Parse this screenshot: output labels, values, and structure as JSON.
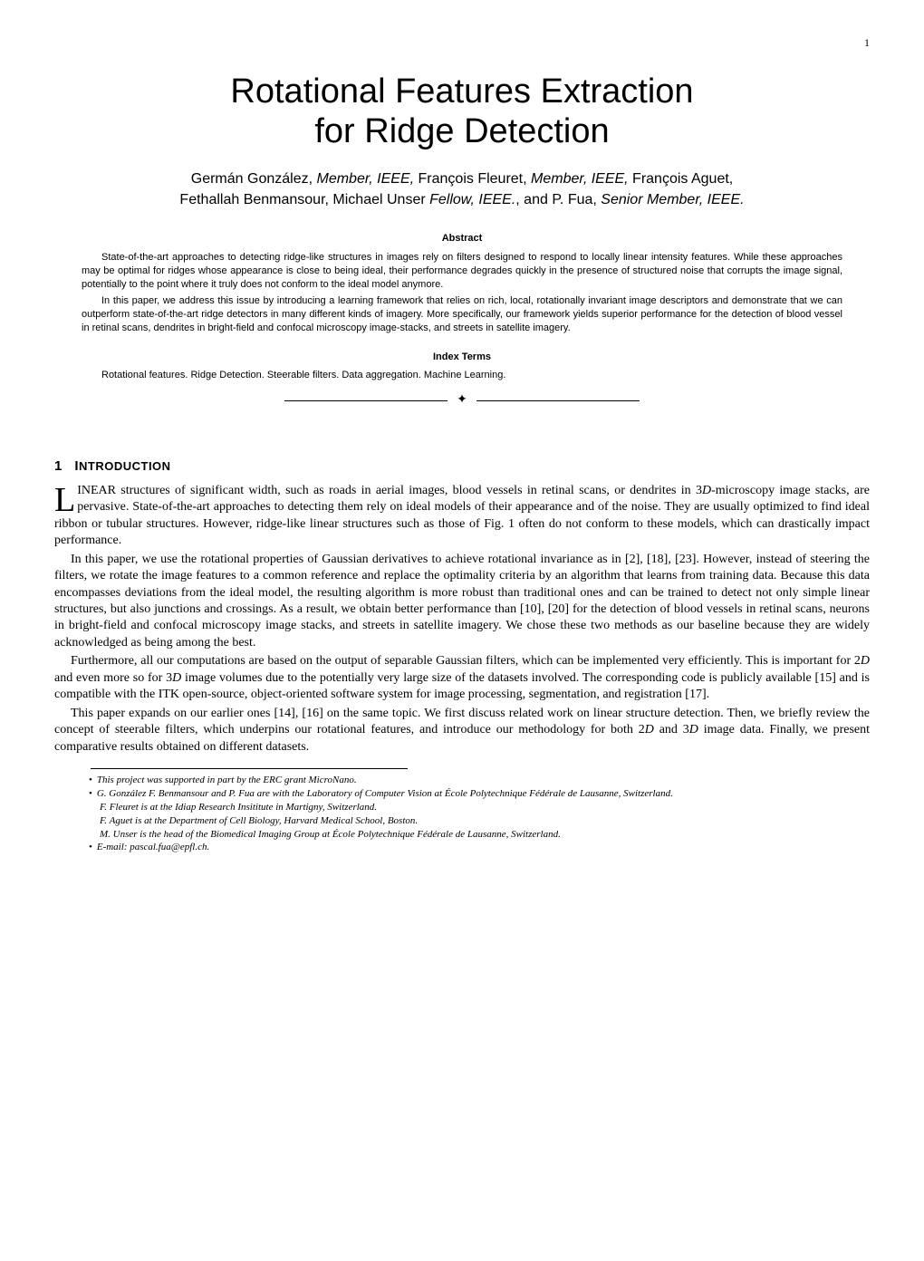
{
  "page_number": "1",
  "title_line1": "Rotational Features Extraction",
  "title_line2": "for Ridge Detection",
  "authors_line1_pre": "Germán González, ",
  "authors_line1_role1": "Member, IEEE,",
  "authors_line1_mid": " François Fleuret, ",
  "authors_line1_role2": "Member, IEEE,",
  "authors_line1_end": " François Aguet,",
  "authors_line2_pre": "Fethallah Benmansour, Michael Unser ",
  "authors_line2_role1": "Fellow, IEEE.",
  "authors_line2_mid": ", and P. Fua, ",
  "authors_line2_role2": "Senior Member, IEEE.",
  "abstract_label": "Abstract",
  "abstract_p1": "State-of-the-art approaches to detecting ridge-like structures in images rely on filters designed to respond to locally linear intensity features. While these approaches may be optimal for ridges whose appearance is close to being ideal, their performance degrades quickly in the presence of structured noise that corrupts the image signal, potentially to the point where it truly does not conform to the ideal model anymore.",
  "abstract_p2": "In this paper, we address this issue by introducing a learning framework that relies on rich, local, rotationally invariant image descriptors and demonstrate that we can outperform state-of-the-art ridge detectors in many different kinds of imagery. More specifically, our framework yields superior performance for the detection of blood vessel in retinal scans, dendrites in bright-field and confocal microscopy image-stacks, and streets in satellite imagery.",
  "index_terms_label": "Index Terms",
  "index_terms_text": "Rotational features. Ridge Detection. Steerable filters. Data aggregation. Machine Learning.",
  "section1_num": "1",
  "section1_initial": "I",
  "section1_rest": "NTRODUCTION",
  "body_dropcap": "L",
  "body_p1": "INEAR structures of significant width, such as roads in aerial images, blood vessels in retinal scans, or dendrites in 3D-microscopy image stacks, are pervasive. State-of-the-art approaches to detecting them rely on ideal models of their appearance and of the noise. They are usually optimized to find ideal ribbon or tubular structures. However, ridge-like linear structures such as those of Fig. 1 often do not conform to these models, which can drastically impact performance.",
  "body_p2": "In this paper, we use the rotational properties of Gaussian derivatives to achieve rotational invariance as in [2], [18], [23]. However, instead of steering the filters, we rotate the image features to a common reference and replace the optimality criteria by an algorithm that learns from training data. Because this data encompasses deviations from the ideal model, the resulting algorithm is more robust than traditional ones and can be trained to detect not only simple linear structures, but also junctions and crossings. As a result, we obtain better performance than [10], [20] for the detection of blood vessels in retinal scans, neurons in bright-field and confocal microscopy image stacks, and streets in satellite imagery. We chose these two methods as our baseline because they are widely acknowledged as being among the best.",
  "body_p3": "Furthermore, all our computations are based on the output of separable Gaussian filters, which can be implemented very efficiently. This is important for 2D and even more so for 3D image volumes due to the potentially very large size of the datasets involved. The corresponding code is publicly available [15] and is compatible with the ITK open-source, object-oriented software system for image processing, segmentation, and registration [17].",
  "body_p4": "This paper expands on our earlier ones [14], [16] on the same topic. We first discuss related work on linear structure detection. Then, we briefly review the concept of steerable filters, which underpins our rotational features, and introduce our methodology for both 2D and 3D image data. Finally, we present comparative results obtained on different datasets.",
  "footnote1": "This project was supported in part by the ERC grant MicroNano.",
  "footnote2a": "G. González F. Benmansour and P. Fua are with the Laboratory of Computer Vision at École Polytechnique Fédérale de Lausanne, Switzerland.",
  "footnote2b": "F. Fleuret is at the Idiap Research Insititute in Martigny, Switzerland.",
  "footnote2c": "F. Aguet is at the Department of Cell Biology, Harvard Medical School, Boston.",
  "footnote2d": "M. Unser is the head of the Biomedical Imaging Group at École Polytechnique Fédérale de Lausanne, Switzerland.",
  "footnote3": "E-mail: pascal.fua@epfl.ch."
}
